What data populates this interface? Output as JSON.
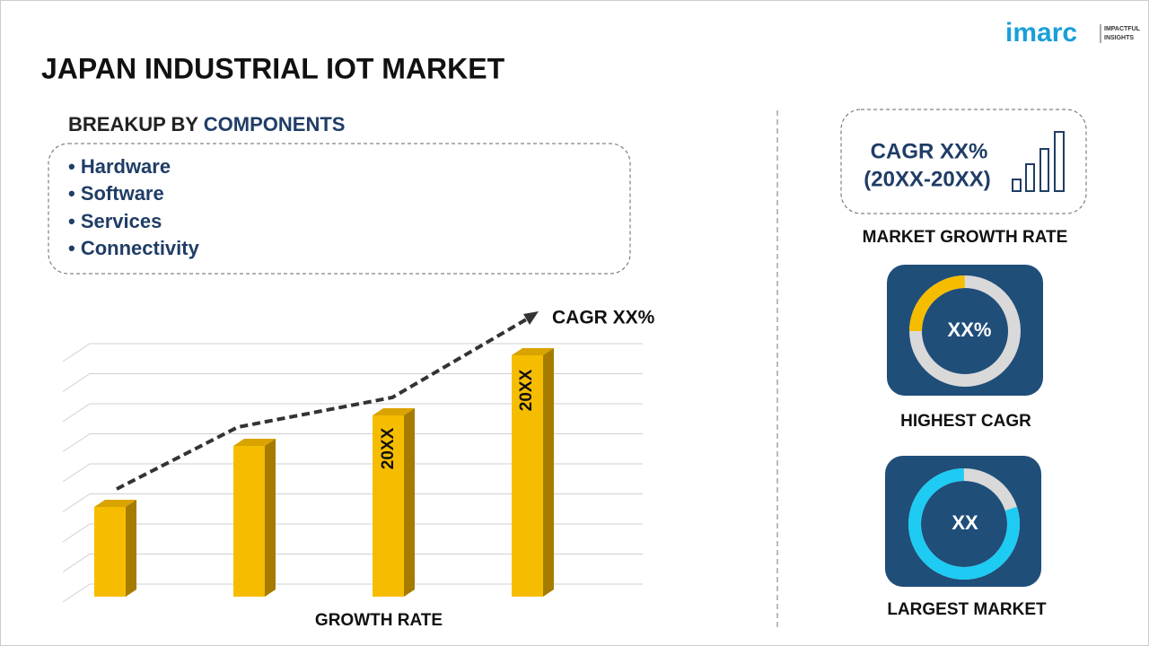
{
  "header": {
    "title": "JAPAN INDUSTRIAL IOT MARKET"
  },
  "logo": {
    "brand": "imarc",
    "tagline": [
      "IMPACTFUL",
      "INSIGHTS"
    ]
  },
  "breakup": {
    "heading_prefix": "BREAKUP BY ",
    "heading_highlight": "COMPONENTS",
    "items": [
      "• Hardware",
      "• Software",
      "• Services",
      "• Connectivity"
    ]
  },
  "chart": {
    "cagr_label": "CAGR XX%",
    "bar_labels": [
      "20XX",
      "20XX"
    ],
    "x_label": "GROWTH RATE"
  },
  "growth": {
    "cagr": "CAGR XX%",
    "period": "(20XX-20XX)",
    "caption": "MARKET GROWTH RATE"
  },
  "highest": {
    "value": "XX%",
    "caption": "HIGHEST CAGR"
  },
  "largest": {
    "value": "XX",
    "caption": "LARGEST MARKET"
  }
}
